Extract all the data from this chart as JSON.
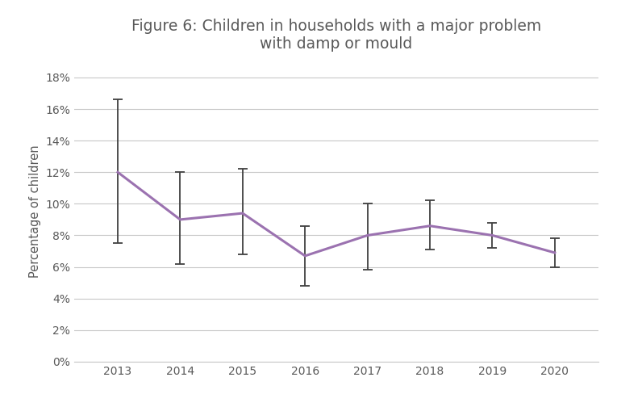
{
  "title": "Figure 6: Children in households with a major problem\nwith damp or mould",
  "xlabel": "",
  "ylabel": "Percentage of children",
  "years": [
    2013,
    2014,
    2015,
    2016,
    2017,
    2018,
    2019,
    2020
  ],
  "values": [
    0.12,
    0.09,
    0.094,
    0.067,
    0.08,
    0.086,
    0.08,
    0.069
  ],
  "errors_upper": [
    0.166,
    0.12,
    0.122,
    0.086,
    0.1,
    0.102,
    0.088,
    0.078
  ],
  "errors_lower": [
    0.075,
    0.062,
    0.068,
    0.048,
    0.058,
    0.071,
    0.072,
    0.06
  ],
  "line_color": "#9B72B0",
  "error_color": "#404040",
  "background_color": "#ffffff",
  "grid_color": "#c8c8c8",
  "text_color": "#595959",
  "ylim": [
    0,
    0.19
  ],
  "yticks": [
    0,
    0.02,
    0.04,
    0.06,
    0.08,
    0.1,
    0.12,
    0.14,
    0.16,
    0.18
  ],
  "title_fontsize": 13.5,
  "axis_label_fontsize": 10.5,
  "tick_fontsize": 10
}
